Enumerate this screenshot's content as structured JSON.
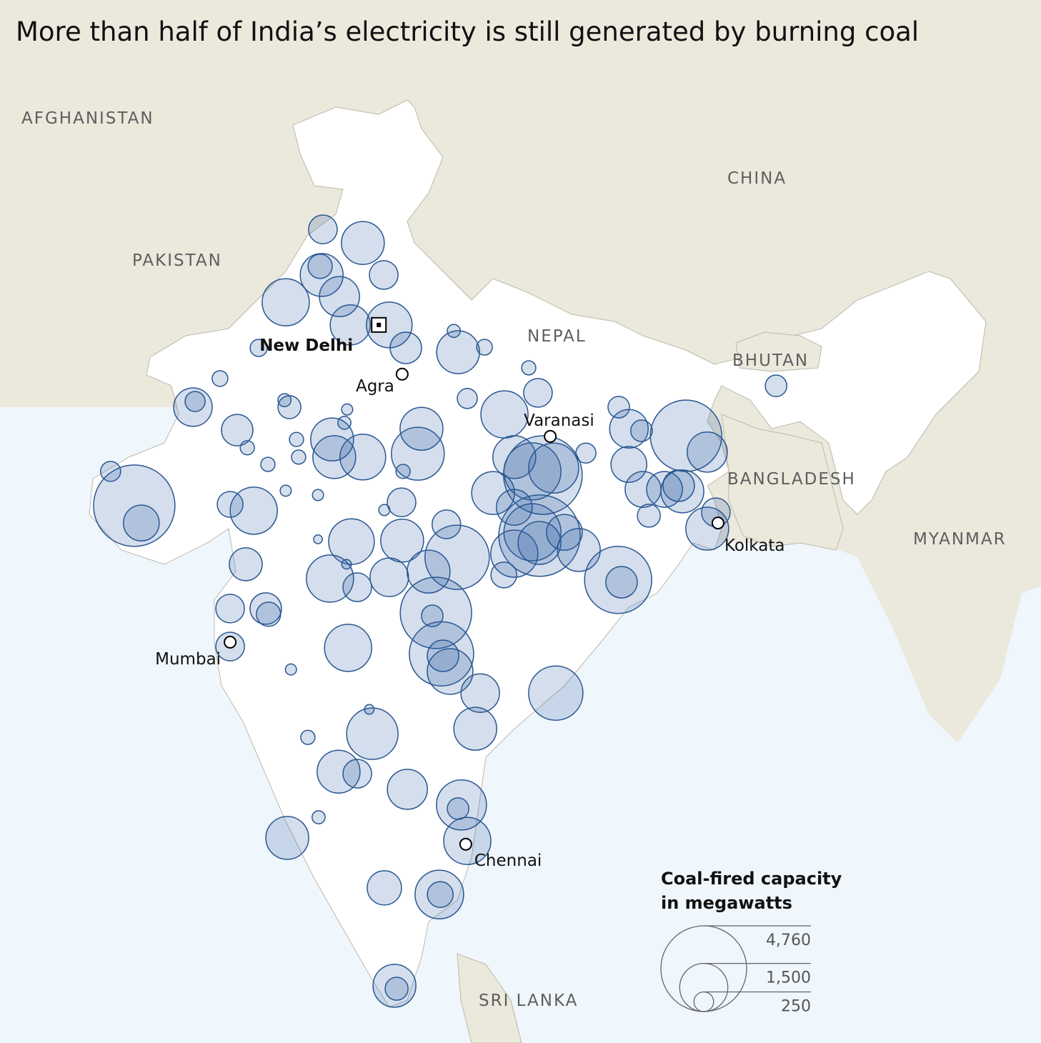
{
  "title": "More than half of India’s electricity is still generated by burning coal",
  "countries": [
    "AFGHANISTAN",
    "PAKISTAN",
    "CHINA",
    "NEPAL",
    "BHUTAN",
    "BANGLADESH",
    "MYANMAR",
    "SRI LANKA"
  ],
  "cities": [
    {
      "name": "New Delhi",
      "lon": 77.2,
      "lat": 28.6,
      "capital": true
    },
    {
      "name": "Agra",
      "lon": 77.96,
      "lat": 27.12
    },
    {
      "name": "Varanasi",
      "lon": 82.78,
      "lat": 25.25
    },
    {
      "name": "Kolkata",
      "lon": 88.24,
      "lat": 22.65
    },
    {
      "name": "Mumbai",
      "lon": 72.36,
      "lat": 19.07
    },
    {
      "name": "Chennai",
      "lon": 80.03,
      "lat": 13.0
    }
  ],
  "plants": [
    {
      "lon": 75.38,
      "lat": 31.47,
      "capacity": 530
    },
    {
      "lon": 76.68,
      "lat": 31.06,
      "capacity": 1190
    },
    {
      "lon": 75.29,
      "lat": 30.36,
      "capacity": 380
    },
    {
      "lon": 75.34,
      "lat": 30.1,
      "capacity": 1190
    },
    {
      "lon": 77.36,
      "lat": 30.1,
      "capacity": 530
    },
    {
      "lon": 75.92,
      "lat": 29.45,
      "capacity": 1040
    },
    {
      "lon": 74.17,
      "lat": 29.28,
      "capacity": 1440
    },
    {
      "lon": 76.27,
      "lat": 28.6,
      "capacity": 1040
    },
    {
      "lon": 77.54,
      "lat": 28.6,
      "capacity": 1350
    },
    {
      "lon": 78.08,
      "lat": 27.91,
      "capacity": 640
    },
    {
      "lon": 79.78,
      "lat": 27.78,
      "capacity": 1190
    },
    {
      "lon": 80.64,
      "lat": 27.93,
      "capacity": 160
    },
    {
      "lon": 79.64,
      "lat": 28.42,
      "capacity": 110
    },
    {
      "lon": 73.29,
      "lat": 27.91,
      "capacity": 190
    },
    {
      "lon": 72.03,
      "lat": 26.99,
      "capacity": 160
    },
    {
      "lon": 71.15,
      "lat": 26.13,
      "capacity": 960
    },
    {
      "lon": 71.22,
      "lat": 26.3,
      "capacity": 260
    },
    {
      "lon": 74.13,
      "lat": 26.34,
      "capacity": 110
    },
    {
      "lon": 74.29,
      "lat": 26.13,
      "capacity": 340
    },
    {
      "lon": 72.59,
      "lat": 25.44,
      "capacity": 640
    },
    {
      "lon": 72.92,
      "lat": 24.91,
      "capacity": 130
    },
    {
      "lon": 75.68,
      "lat": 25.16,
      "capacity": 1190
    },
    {
      "lon": 75.75,
      "lat": 24.63,
      "capacity": 1190
    },
    {
      "lon": 76.68,
      "lat": 24.63,
      "capacity": 1350
    },
    {
      "lon": 74.52,
      "lat": 25.16,
      "capacity": 130
    },
    {
      "lon": 74.59,
      "lat": 24.63,
      "capacity": 130
    },
    {
      "lon": 73.59,
      "lat": 24.41,
      "capacity": 130
    },
    {
      "lon": 78.59,
      "lat": 25.48,
      "capacity": 1190
    },
    {
      "lon": 78.47,
      "lat": 24.73,
      "capacity": 1810
    },
    {
      "lon": 77.99,
      "lat": 24.2,
      "capacity": 130
    },
    {
      "lon": 76.08,
      "lat": 25.66,
      "capacity": 110
    },
    {
      "lon": 81.29,
      "lat": 25.91,
      "capacity": 1440
    },
    {
      "lon": 82.38,
      "lat": 26.56,
      "capacity": 530
    },
    {
      "lon": 82.08,
      "lat": 27.31,
      "capacity": 130
    },
    {
      "lon": 80.08,
      "lat": 26.39,
      "capacity": 260
    },
    {
      "lon": 81.61,
      "lat": 24.63,
      "capacity": 1190
    },
    {
      "lon": 82.54,
      "lat": 24.09,
      "capacity": 4000
    },
    {
      "lon": 83.94,
      "lat": 24.75,
      "capacity": 260
    },
    {
      "lon": 85.01,
      "lat": 26.13,
      "capacity": 300
    },
    {
      "lon": 85.34,
      "lat": 25.48,
      "capacity": 960
    },
    {
      "lon": 85.75,
      "lat": 25.42,
      "capacity": 300
    },
    {
      "lon": 87.2,
      "lat": 25.27,
      "capacity": 3300
    },
    {
      "lon": 87.89,
      "lat": 24.78,
      "capacity": 1040
    },
    {
      "lon": 85.34,
      "lat": 24.41,
      "capacity": 830
    },
    {
      "lon": 85.8,
      "lat": 23.66,
      "capacity": 830
    },
    {
      "lon": 86.5,
      "lat": 23.66,
      "capacity": 830
    },
    {
      "lon": 87.08,
      "lat": 23.6,
      "capacity": 1190
    },
    {
      "lon": 86.96,
      "lat": 23.77,
      "capacity": 640
    },
    {
      "lon": 85.99,
      "lat": 22.87,
      "capacity": 340
    },
    {
      "lon": 87.89,
      "lat": 22.48,
      "capacity": 1190
    },
    {
      "lon": 88.17,
      "lat": 22.97,
      "capacity": 530
    },
    {
      "lon": 90.13,
      "lat": 26.77,
      "capacity": 300
    },
    {
      "lon": 68.47,
      "lat": 24.2,
      "capacity": 260
    },
    {
      "lon": 69.24,
      "lat": 23.17,
      "capacity": 4290
    },
    {
      "lon": 69.47,
      "lat": 22.65,
      "capacity": 830
    },
    {
      "lon": 72.36,
      "lat": 23.21,
      "capacity": 430
    },
    {
      "lon": 73.13,
      "lat": 23.02,
      "capacity": 1440
    },
    {
      "lon": 74.17,
      "lat": 23.62,
      "capacity": 80
    },
    {
      "lon": 75.22,
      "lat": 23.49,
      "capacity": 80
    },
    {
      "lon": 77.94,
      "lat": 23.27,
      "capacity": 530
    },
    {
      "lon": 77.38,
      "lat": 23.04,
      "capacity": 80
    },
    {
      "lon": 79.4,
      "lat": 22.61,
      "capacity": 530
    },
    {
      "lon": 80.92,
      "lat": 23.55,
      "capacity": 1190
    },
    {
      "lon": 81.61,
      "lat": 23.12,
      "capacity": 830
    },
    {
      "lon": 82.43,
      "lat": 22.27,
      "capacity": 4290
    },
    {
      "lon": 83.71,
      "lat": 21.84,
      "capacity": 1190
    },
    {
      "lon": 81.61,
      "lat": 21.73,
      "capacity": 1440
    },
    {
      "lon": 83.24,
      "lat": 22.37,
      "capacity": 830
    },
    {
      "lon": 84.99,
      "lat": 20.94,
      "capacity": 2920
    },
    {
      "lon": 85.1,
      "lat": 20.87,
      "capacity": 640
    },
    {
      "lon": 81.27,
      "lat": 21.09,
      "capacity": 430
    },
    {
      "lon": 79.75,
      "lat": 21.62,
      "capacity": 2680
    },
    {
      "lon": 78.82,
      "lat": 21.19,
      "capacity": 1190
    },
    {
      "lon": 77.96,
      "lat": 22.12,
      "capacity": 1190
    },
    {
      "lon": 76.31,
      "lat": 22.09,
      "capacity": 1350
    },
    {
      "lon": 75.61,
      "lat": 20.98,
      "capacity": 1440
    },
    {
      "lon": 76.5,
      "lat": 20.72,
      "capacity": 530
    },
    {
      "lon": 77.54,
      "lat": 21.02,
      "capacity": 960
    },
    {
      "lon": 79.06,
      "lat": 19.95,
      "capacity": 3300
    },
    {
      "lon": 78.94,
      "lat": 19.86,
      "capacity": 300
    },
    {
      "lon": 79.24,
      "lat": 18.72,
      "capacity": 2680
    },
    {
      "lon": 79.29,
      "lat": 18.66,
      "capacity": 640
    },
    {
      "lon": 79.52,
      "lat": 18.19,
      "capacity": 1350
    },
    {
      "lon": 76.17,
      "lat": 26.06,
      "capacity": 80
    },
    {
      "lon": 75.22,
      "lat": 22.16,
      "capacity": 50
    },
    {
      "lon": 76.15,
      "lat": 21.41,
      "capacity": 60
    },
    {
      "lon": 72.87,
      "lat": 21.41,
      "capacity": 700
    },
    {
      "lon": 72.36,
      "lat": 20.08,
      "capacity": 530
    },
    {
      "lon": 73.52,
      "lat": 20.08,
      "capacity": 640
    },
    {
      "lon": 73.61,
      "lat": 19.91,
      "capacity": 380
    },
    {
      "lon": 72.36,
      "lat": 18.94,
      "capacity": 530
    },
    {
      "lon": 76.2,
      "lat": 18.9,
      "capacity": 1440
    },
    {
      "lon": 74.34,
      "lat": 18.25,
      "capacity": 80
    },
    {
      "lon": 80.5,
      "lat": 17.54,
      "capacity": 960
    },
    {
      "lon": 82.96,
      "lat": 17.54,
      "capacity": 1910
    },
    {
      "lon": 80.34,
      "lat": 16.47,
      "capacity": 1190
    },
    {
      "lon": 76.99,
      "lat": 16.32,
      "capacity": 1710
    },
    {
      "lon": 76.89,
      "lat": 17.05,
      "capacity": 60
    },
    {
      "lon": 75.89,
      "lat": 15.18,
      "capacity": 1190
    },
    {
      "lon": 76.5,
      "lat": 15.12,
      "capacity": 530
    },
    {
      "lon": 74.89,
      "lat": 16.21,
      "capacity": 130
    },
    {
      "lon": 78.13,
      "lat": 14.65,
      "capacity": 1040
    },
    {
      "lon": 79.89,
      "lat": 14.18,
      "capacity": 1620
    },
    {
      "lon": 79.78,
      "lat": 14.07,
      "capacity": 300
    },
    {
      "lon": 80.08,
      "lat": 13.1,
      "capacity": 1440
    },
    {
      "lon": 75.24,
      "lat": 13.81,
      "capacity": 110
    },
    {
      "lon": 74.22,
      "lat": 13.19,
      "capacity": 1190
    },
    {
      "lon": 77.38,
      "lat": 11.69,
      "capacity": 760
    },
    {
      "lon": 79.17,
      "lat": 11.49,
      "capacity": 1530
    },
    {
      "lon": 79.2,
      "lat": 11.49,
      "capacity": 430
    },
    {
      "lon": 77.71,
      "lat": 8.75,
      "capacity": 1190
    },
    {
      "lon": 77.78,
      "lat": 8.66,
      "capacity": 340
    },
    {
      "lon": 82.2,
      "lat": 24.2,
      "capacity": 2110
    },
    {
      "lon": 82.89,
      "lat": 24.3,
      "capacity": 1620
    },
    {
      "lon": 82.43,
      "lat": 22.05,
      "capacity": 1190
    },
    {
      "lon": 82.2,
      "lat": 22.37,
      "capacity": 2110
    }
  ],
  "legend": {
    "title": [
      "Coal-fired capacity",
      "in megawatts"
    ],
    "sizes": [
      {
        "value": 4760,
        "label": "4,760"
      },
      {
        "value": 1500,
        "label": "1,500"
      },
      {
        "value": 250,
        "label": "250"
      }
    ]
  }
}
